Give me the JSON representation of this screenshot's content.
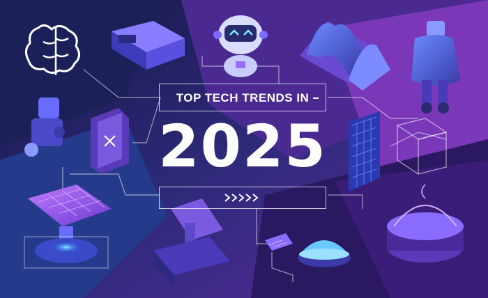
{
  "headline": {
    "line1": "TOP TECH TRENDS IN",
    "year": "2025"
  },
  "colors": {
    "bg_navy": "#1c1f52",
    "bg_purple": "#5a2a9c",
    "bg_magenta": "#8a3fc2",
    "accent_cyan": "#3ad0ff",
    "accent_violet": "#9b6cff",
    "text": "#ffffff"
  },
  "illustrations": [
    "brain-icon",
    "vr-headset-icon",
    "robot-head-icon",
    "solar-wave-panels-icon",
    "humanoid-robot-icon",
    "robot-arm-icon",
    "smartphone-device-icon",
    "solar-panel-tower-icon",
    "wireframe-cube-icon",
    "solar-panel-platform-icon",
    "robotic-manipulator-icon",
    "circuit-chip-icon",
    "drone-dome-icon",
    "holographic-pod-icon"
  ]
}
